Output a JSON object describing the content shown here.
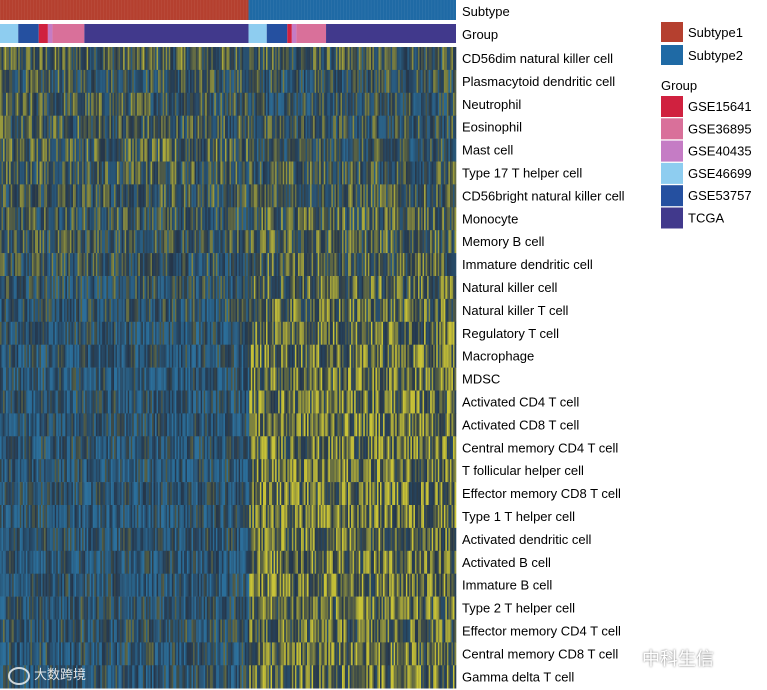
{
  "chart_data": {
    "type": "heatmap",
    "title": "",
    "annotation_tracks": [
      {
        "name": "Subtype"
      },
      {
        "name": "Group"
      }
    ],
    "subtype_segments": [
      {
        "label": "Subtype1",
        "fraction": 0.545
      },
      {
        "label": "Subtype2",
        "fraction": 0.455
      }
    ],
    "group_segments": [
      {
        "group": "GSE46699",
        "fraction": 0.04
      },
      {
        "group": "GSE53757",
        "fraction": 0.045
      },
      {
        "group": "GSE15641",
        "fraction": 0.02
      },
      {
        "group": "GSE40435",
        "fraction": 0.01
      },
      {
        "group": "GSE36895",
        "fraction": 0.07
      },
      {
        "group": "TCGA",
        "fraction": 0.36
      },
      {
        "group": "GSE46699",
        "fraction": 0.04
      },
      {
        "group": "GSE53757",
        "fraction": 0.045
      },
      {
        "group": "GSE15641",
        "fraction": 0.01
      },
      {
        "group": "GSE40435",
        "fraction": 0.01
      },
      {
        "group": "GSE36895",
        "fraction": 0.065
      },
      {
        "group": "TCGA",
        "fraction": 0.285
      }
    ],
    "rows": [
      {
        "label": "CD56dim natural killer cell",
        "subtype1_mean": 0.55,
        "subtype2_mean": 0.5
      },
      {
        "label": "Plasmacytoid dendritic cell",
        "subtype1_mean": 0.45,
        "subtype2_mean": 0.42
      },
      {
        "label": "Neutrophil",
        "subtype1_mean": 0.5,
        "subtype2_mean": 0.42
      },
      {
        "label": "Eosinophil",
        "subtype1_mean": 0.5,
        "subtype2_mean": 0.45
      },
      {
        "label": "Mast cell",
        "subtype1_mean": 0.55,
        "subtype2_mean": 0.42
      },
      {
        "label": "Type 17 T helper cell",
        "subtype1_mean": 0.5,
        "subtype2_mean": 0.5
      },
      {
        "label": "CD56bright natural killer cell",
        "subtype1_mean": 0.48,
        "subtype2_mean": 0.52
      },
      {
        "label": "Monocyte",
        "subtype1_mean": 0.45,
        "subtype2_mean": 0.55
      },
      {
        "label": "Memory B cell",
        "subtype1_mean": 0.45,
        "subtype2_mean": 0.55
      },
      {
        "label": "Immature dendritic cell",
        "subtype1_mean": 0.42,
        "subtype2_mean": 0.55
      },
      {
        "label": "Natural killer cell",
        "subtype1_mean": 0.38,
        "subtype2_mean": 0.6
      },
      {
        "label": "Natural killer T cell",
        "subtype1_mean": 0.35,
        "subtype2_mean": 0.62
      },
      {
        "label": "Regulatory T cell",
        "subtype1_mean": 0.3,
        "subtype2_mean": 0.68
      },
      {
        "label": "Macrophage",
        "subtype1_mean": 0.3,
        "subtype2_mean": 0.68
      },
      {
        "label": "MDSC",
        "subtype1_mean": 0.28,
        "subtype2_mean": 0.7
      },
      {
        "label": "Activated CD4 T cell",
        "subtype1_mean": 0.3,
        "subtype2_mean": 0.7
      },
      {
        "label": "Activated CD8 T cell",
        "subtype1_mean": 0.28,
        "subtype2_mean": 0.72
      },
      {
        "label": "Central memory CD4 T cell",
        "subtype1_mean": 0.3,
        "subtype2_mean": 0.7
      },
      {
        "label": "T follicular helper cell",
        "subtype1_mean": 0.28,
        "subtype2_mean": 0.72
      },
      {
        "label": "Effector memory CD8 T cell",
        "subtype1_mean": 0.28,
        "subtype2_mean": 0.72
      },
      {
        "label": "Type 1 T helper cell",
        "subtype1_mean": 0.26,
        "subtype2_mean": 0.74
      },
      {
        "label": "Activated dendritic cell",
        "subtype1_mean": 0.3,
        "subtype2_mean": 0.7
      },
      {
        "label": "Activated B cell",
        "subtype1_mean": 0.28,
        "subtype2_mean": 0.72
      },
      {
        "label": "Immature B cell",
        "subtype1_mean": 0.28,
        "subtype2_mean": 0.72
      },
      {
        "label": "Type 2 T helper cell",
        "subtype1_mean": 0.32,
        "subtype2_mean": 0.66
      },
      {
        "label": "Effector memory CD4 T cell",
        "subtype1_mean": 0.35,
        "subtype2_mean": 0.62
      },
      {
        "label": "Central memory CD8 T cell",
        "subtype1_mean": 0.32,
        "subtype2_mean": 0.66
      },
      {
        "label": "Gamma delta T cell",
        "subtype1_mean": 0.3,
        "subtype2_mean": 0.68
      }
    ],
    "color_scale": {
      "low": "#2b6f9b",
      "mid": "#25364a",
      "high": "#c8c236"
    },
    "legend": {
      "position": "top-right",
      "subtype_title": "",
      "subtype_items": [
        {
          "label": "Subtype1",
          "color": "#b5402f"
        },
        {
          "label": "Subtype2",
          "color": "#1f6aa5"
        }
      ],
      "group_title": "Group",
      "group_items": [
        {
          "label": "GSE15641",
          "color": "#d0213f"
        },
        {
          "label": "GSE36895",
          "color": "#d9709a"
        },
        {
          "label": "GSE40435",
          "color": "#c57cc5"
        },
        {
          "label": "GSE46699",
          "color": "#8ecdf0"
        },
        {
          "label": "GSE53757",
          "color": "#2550a0"
        },
        {
          "label": "TCGA",
          "color": "#41398c"
        }
      ]
    }
  },
  "watermarks": {
    "left": "大数跨境",
    "right": "中科生信"
  }
}
